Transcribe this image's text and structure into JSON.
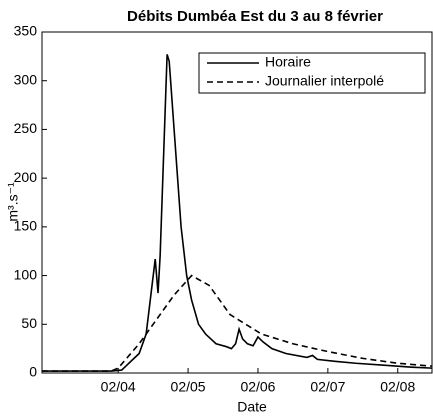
{
  "chart_data": {
    "type": "line",
    "title": "Débits Dumbéa Est du 3 au 8 février",
    "xlabel": "Date",
    "ylabel": "m³.s⁻¹",
    "xlim": [
      2.91,
      8.49
    ],
    "ylim": [
      0,
      350
    ],
    "xticks": [
      {
        "value": 4,
        "label": "02/04"
      },
      {
        "value": 5,
        "label": "02/05"
      },
      {
        "value": 6,
        "label": "02/06"
      },
      {
        "value": 7,
        "label": "02/07"
      },
      {
        "value": 8,
        "label": "02/08"
      }
    ],
    "yticks": [
      0,
      50,
      100,
      150,
      200,
      250,
      300,
      350
    ],
    "legend": "top-right",
    "series": [
      {
        "name": "Horaire",
        "color": "#000000",
        "dash": "solid",
        "x": [
          2.91,
          3.9,
          4.05,
          4.3,
          4.4,
          4.53,
          4.57,
          4.6,
          4.7,
          4.73,
          4.8,
          4.9,
          4.98,
          5.05,
          5.15,
          5.25,
          5.4,
          5.55,
          5.62,
          5.68,
          5.73,
          5.78,
          5.85,
          5.93,
          6.0,
          6.07,
          6.2,
          6.4,
          6.7,
          6.78,
          6.85,
          7.1,
          7.4,
          7.8,
          8.2,
          8.49
        ],
        "values": [
          2,
          2,
          3,
          20,
          40,
          117,
          82,
          120,
          327,
          320,
          250,
          150,
          100,
          75,
          50,
          40,
          30,
          27,
          25,
          30,
          45,
          35,
          30,
          28,
          37,
          32,
          25,
          20,
          16,
          18,
          14,
          12,
          10,
          8,
          6,
          5
        ]
      },
      {
        "name": "Journalier interpolé",
        "color": "#000000",
        "dash": "dashed",
        "x": [
          2.91,
          3.9,
          4.0,
          4.3,
          4.5,
          4.8,
          5.05,
          5.3,
          5.6,
          6.05,
          6.5,
          7.0,
          7.5,
          8.0,
          8.49
        ],
        "values": [
          2,
          2,
          5,
          30,
          50,
          80,
          100,
          90,
          60,
          40,
          30,
          22,
          15,
          10,
          7
        ]
      }
    ]
  }
}
